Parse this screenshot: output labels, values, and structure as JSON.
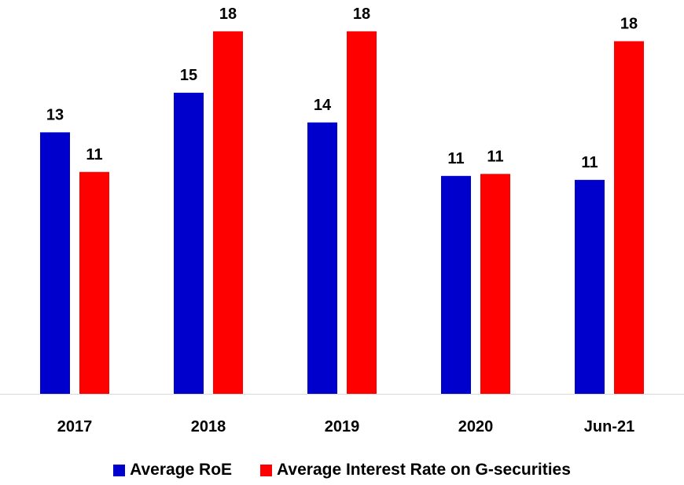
{
  "chart_data": {
    "type": "bar",
    "categories": [
      "2017",
      "2018",
      "2019",
      "2020",
      "Jun-21"
    ],
    "series": [
      {
        "name": "Average RoE",
        "color": "#0000CC",
        "values": [
          13,
          15,
          14,
          11,
          11
        ],
        "plotted": [
          13.2,
          15.2,
          13.7,
          11.0,
          10.8
        ]
      },
      {
        "name": "Average Interest Rate on G-securities",
        "color": "#FF0000",
        "values": [
          11,
          18,
          18,
          11,
          18
        ],
        "plotted": [
          11.2,
          18.3,
          18.3,
          11.1,
          17.8
        ]
      }
    ],
    "title": "",
    "xlabel": "",
    "ylabel": "",
    "ylim": [
      0,
      20
    ],
    "grid": false,
    "legend_position": "bottom"
  }
}
